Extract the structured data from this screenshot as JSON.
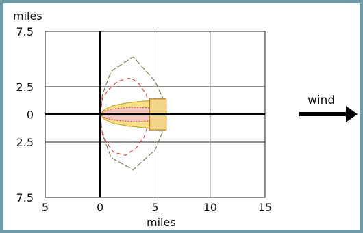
{
  "chart_data": {
    "type": "diagram",
    "unit_label_top": "miles",
    "unit_label_bottom": "miles",
    "x_ticks": [
      "5",
      "0",
      "5",
      "10",
      "15"
    ],
    "x_tick_values": [
      -5,
      0,
      5,
      10,
      15
    ],
    "y_ticks": [
      "7.5",
      "2.5",
      "0",
      "2.5",
      "7.5"
    ],
    "y_tick_values": [
      7.5,
      2.5,
      0,
      -2.5,
      -7.5
    ],
    "xlim": [
      -5,
      15
    ],
    "ylim": [
      -7.5,
      7.5
    ],
    "grid": true,
    "wind_label": "wind",
    "zones": [
      {
        "kind": "fan",
        "stroke": "#8a7a55",
        "dash": "8,3",
        "points": [
          [
            0,
            0
          ],
          [
            0.2,
            1.8
          ],
          [
            1.0,
            3.9
          ],
          [
            3.0,
            5.2
          ],
          [
            5.0,
            3.0
          ],
          [
            6.0,
            0.8
          ],
          [
            6.0,
            -0.8
          ],
          [
            5.0,
            -3.2
          ],
          [
            3.0,
            -5.0
          ],
          [
            1.0,
            -3.9
          ],
          [
            0.2,
            -1.8
          ],
          [
            0,
            0
          ]
        ]
      },
      {
        "kind": "red-dashed",
        "stroke": "#dd4444",
        "dash": "6,4",
        "points": [
          [
            0,
            0
          ],
          [
            0.2,
            1.4
          ],
          [
            0.7,
            2.2
          ],
          [
            1.6,
            3.0
          ],
          [
            2.8,
            3.3
          ],
          [
            3.5,
            2.8
          ],
          [
            4.2,
            1.8
          ],
          [
            4.4,
            0.6
          ],
          [
            4.4,
            -0.8
          ],
          [
            4.0,
            -2.0
          ],
          [
            3.3,
            -3.0
          ],
          [
            2.3,
            -3.7
          ],
          [
            1.2,
            -3.4
          ],
          [
            0.5,
            -2.4
          ],
          [
            0.1,
            -1.3
          ],
          [
            0,
            0
          ]
        ]
      },
      {
        "kind": "yellow-plume",
        "fill": "#f7e28a",
        "stroke": "#c9a62a",
        "points": [
          [
            0,
            0
          ],
          [
            0.4,
            0.45
          ],
          [
            1.2,
            0.8
          ],
          [
            2.5,
            1.05
          ],
          [
            4.0,
            1.2
          ],
          [
            6.0,
            1.4
          ],
          [
            6.0,
            -1.4
          ],
          [
            4.0,
            -1.2
          ],
          [
            2.5,
            -1.05
          ],
          [
            1.2,
            -0.8
          ],
          [
            0.4,
            -0.45
          ],
          [
            0,
            0
          ]
        ]
      },
      {
        "kind": "red-dotted-core",
        "fill": "#f4c6bf",
        "stroke": "#e05050",
        "dash": "2,2",
        "points": [
          [
            0,
            0
          ],
          [
            0.5,
            0.35
          ],
          [
            1.5,
            0.55
          ],
          [
            3.0,
            0.65
          ],
          [
            4.5,
            0.6
          ],
          [
            4.5,
            -0.6
          ],
          [
            3.0,
            -0.65
          ],
          [
            1.5,
            -0.55
          ],
          [
            0.5,
            -0.35
          ],
          [
            0,
            0
          ]
        ]
      },
      {
        "kind": "plume-bar",
        "fill": "#f2d38a",
        "stroke": "#b07a20",
        "rect": [
          4.5,
          -1.4,
          6.0,
          1.4
        ]
      }
    ]
  }
}
